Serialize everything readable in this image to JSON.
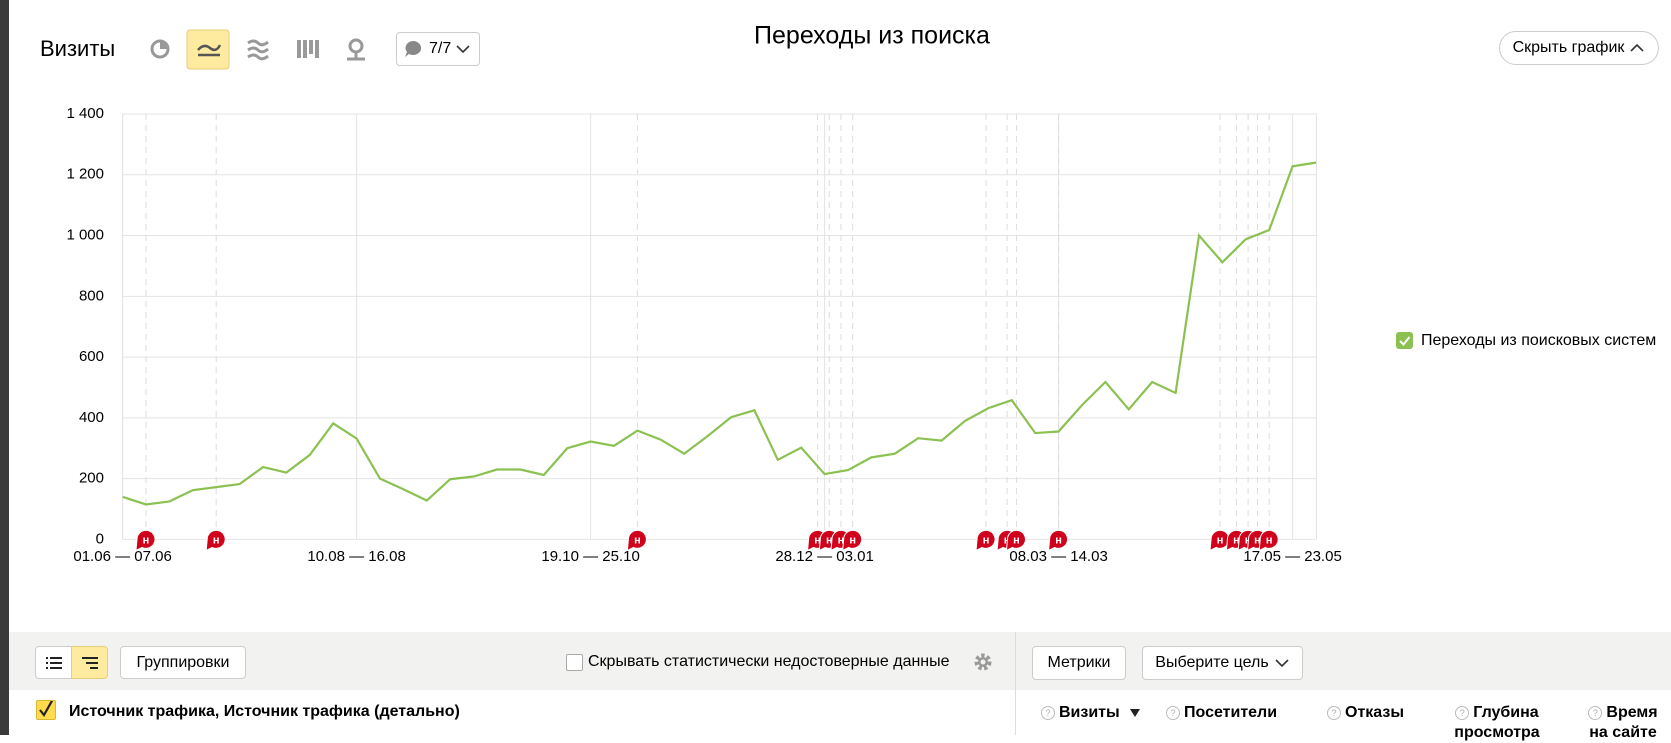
{
  "header": {
    "title": "Визиты",
    "filter_count": "7/7",
    "hide_button": "Скрыть график"
  },
  "chart_data": {
    "type": "line",
    "title": "Переходы из поиска",
    "categories": [
      "01.06 — 07.06",
      null,
      null,
      null,
      null,
      null,
      null,
      null,
      null,
      null,
      "10.08 — 16.08",
      null,
      null,
      null,
      null,
      null,
      null,
      null,
      null,
      null,
      "19.10 — 25.10",
      null,
      null,
      null,
      null,
      null,
      null,
      null,
      null,
      null,
      "28.12 — 03.01",
      null,
      null,
      null,
      null,
      null,
      null,
      null,
      null,
      null,
      "08.03 — 14.03",
      null,
      null,
      null,
      null,
      null,
      null,
      null,
      null,
      null,
      "17.05 — 23.05",
      null
    ],
    "series": [
      {
        "name": "Переходы из поисковых систем",
        "color": "#8cc152",
        "values": [
          140,
          115,
          125,
          162,
          172,
          182,
          238,
          220,
          278,
          382,
          332,
          200,
          165,
          128,
          198,
          207,
          230,
          230,
          212,
          300,
          322,
          308,
          358,
          328,
          282,
          340,
          402,
          425,
          262,
          302,
          215,
          228,
          270,
          282,
          333,
          325,
          390,
          432,
          458,
          350,
          355,
          442,
          518,
          428,
          518,
          482,
          1000,
          912,
          988,
          1018,
          1228,
          1240
        ]
      }
    ],
    "ylim": [
      0,
      1400
    ],
    "yticks": [
      0,
      200,
      400,
      600,
      800,
      {
        "value": 1000,
        "label": "1 000"
      },
      {
        "value": 1200,
        "label": "1 200"
      },
      {
        "value": 1400,
        "label": "1 400"
      }
    ],
    "grid": true,
    "legend": "right",
    "note_label": "н",
    "notes": {
      "x": [
        1,
        4,
        22,
        29.7,
        30.2,
        30.7,
        31.2,
        36.9,
        37.8,
        38.2,
        40,
        46.9,
        47.6,
        48.1,
        48.5,
        49
      ]
    }
  },
  "toolbar": {
    "groupings": "Группировки",
    "hide_unreliable": "Скрывать статистически недостоверные данные",
    "metrics": "Метрики",
    "goal": "Выберите цель"
  },
  "table": {
    "dimension": "Источник трафика, Источник трафика (детально)",
    "columns": [
      "Визиты",
      "Посетители",
      "Отказы",
      "Глубина просмотра",
      "Время на сайте"
    ]
  }
}
